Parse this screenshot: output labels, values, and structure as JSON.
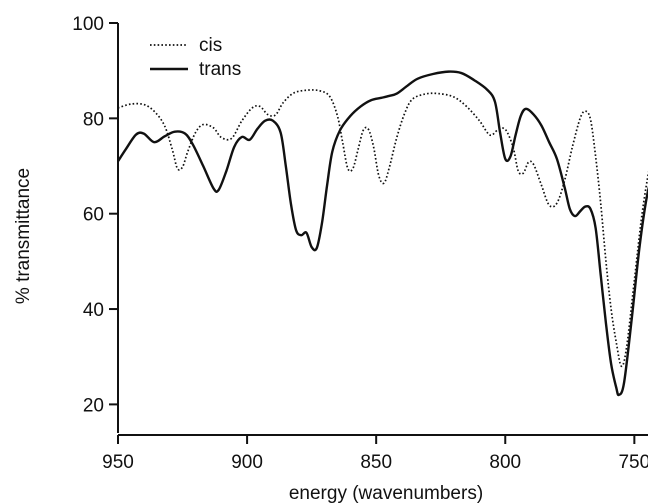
{
  "chart_data": {
    "type": "line",
    "title": "",
    "xlabel": "energy (wavenumbers)",
    "ylabel": "% transmittance",
    "xlim": [
      950,
      742
    ],
    "ylim": [
      14,
      100
    ],
    "x_reversed": true,
    "xticks": [
      950,
      900,
      850,
      800,
      750
    ],
    "yticks": [
      20,
      40,
      60,
      80,
      100
    ],
    "grid": false,
    "legend_position": "top-left",
    "series": [
      {
        "name": "cis",
        "style": "dotted",
        "color": "#111111",
        "points": [
          [
            950,
            82.2
          ],
          [
            945,
            83
          ],
          [
            940,
            82.9
          ],
          [
            936,
            81.5
          ],
          [
            932,
            78.5
          ],
          [
            929,
            73.5
          ],
          [
            927,
            69.5
          ],
          [
            925,
            69.8
          ],
          [
            923,
            73
          ],
          [
            920,
            77
          ],
          [
            917,
            78.7
          ],
          [
            913,
            78
          ],
          [
            910,
            76
          ],
          [
            906,
            75.8
          ],
          [
            902,
            79.5
          ],
          [
            898,
            82.2
          ],
          [
            895,
            82.5
          ],
          [
            892,
            80.8
          ],
          [
            889,
            80.7
          ],
          [
            886,
            83.3
          ],
          [
            882,
            85.3
          ],
          [
            877,
            85.9
          ],
          [
            872,
            85.8
          ],
          [
            868,
            84.6
          ],
          [
            865,
            80.5
          ],
          [
            863,
            75
          ],
          [
            861,
            69.5
          ],
          [
            859,
            69.5
          ],
          [
            857,
            73.5
          ],
          [
            855,
            77.5
          ],
          [
            853,
            77.7
          ],
          [
            851,
            74
          ],
          [
            849,
            68
          ],
          [
            847,
            66.4
          ],
          [
            845,
            69.5
          ],
          [
            842,
            76
          ],
          [
            839,
            81
          ],
          [
            836,
            84
          ],
          [
            831,
            85.1
          ],
          [
            826,
            85.2
          ],
          [
            820,
            84.5
          ],
          [
            815,
            82.5
          ],
          [
            810,
            79.5
          ],
          [
            806,
            76.5
          ],
          [
            803,
            77.5
          ],
          [
            800,
            77.7
          ],
          [
            797,
            74
          ],
          [
            795,
            69
          ],
          [
            793,
            68.5
          ],
          [
            791,
            70.8
          ],
          [
            789,
            70.3
          ],
          [
            786,
            66
          ],
          [
            783,
            61.8
          ],
          [
            780,
            62.2
          ],
          [
            777,
            67
          ],
          [
            774,
            74
          ],
          [
            771,
            80
          ],
          [
            769,
            81.5
          ],
          [
            767,
            79.8
          ],
          [
            765,
            72
          ],
          [
            763,
            62
          ],
          [
            761,
            50
          ],
          [
            759,
            40
          ],
          [
            757,
            33
          ],
          [
            755,
            28
          ],
          [
            753,
            32
          ],
          [
            750,
            46
          ],
          [
            747,
            60
          ],
          [
            744,
            70
          ],
          [
            742,
            73
          ]
        ]
      },
      {
        "name": "trans",
        "style": "solid",
        "color": "#111111",
        "points": [
          [
            950,
            71
          ],
          [
            947,
            73.5
          ],
          [
            943,
            76.6
          ],
          [
            940,
            76.8
          ],
          [
            936,
            75
          ],
          [
            932,
            76.2
          ],
          [
            928,
            77.2
          ],
          [
            924,
            76.8
          ],
          [
            921,
            74.5
          ],
          [
            917,
            70
          ],
          [
            913,
            65.3
          ],
          [
            911,
            65
          ],
          [
            908,
            69
          ],
          [
            905,
            74
          ],
          [
            902,
            76.1
          ],
          [
            899,
            75.5
          ],
          [
            896,
            77.8
          ],
          [
            893,
            79.5
          ],
          [
            890,
            79.5
          ],
          [
            887,
            77
          ],
          [
            885,
            70
          ],
          [
            883,
            62
          ],
          [
            881,
            56.5
          ],
          [
            879,
            55.5
          ],
          [
            877,
            56
          ],
          [
            875,
            53
          ],
          [
            873,
            52.8
          ],
          [
            871,
            58
          ],
          [
            869,
            66
          ],
          [
            867,
            73
          ],
          [
            864,
            77.5
          ],
          [
            860,
            80.5
          ],
          [
            856,
            82.5
          ],
          [
            852,
            83.8
          ],
          [
            848,
            84.3
          ],
          [
            845,
            84.7
          ],
          [
            842,
            85.2
          ],
          [
            838,
            86.8
          ],
          [
            834,
            88.3
          ],
          [
            828,
            89.3
          ],
          [
            822,
            89.8
          ],
          [
            817,
            89.5
          ],
          [
            812,
            88
          ],
          [
            807,
            86
          ],
          [
            804,
            83.5
          ],
          [
            802,
            77
          ],
          [
            800,
            71.5
          ],
          [
            798,
            72
          ],
          [
            796,
            76.5
          ],
          [
            794,
            80.5
          ],
          [
            792,
            82
          ],
          [
            789,
            80.8
          ],
          [
            786,
            78.5
          ],
          [
            783,
            75
          ],
          [
            780,
            71.5
          ],
          [
            777,
            65.5
          ],
          [
            775,
            61
          ],
          [
            773,
            59.5
          ],
          [
            771,
            60.5
          ],
          [
            769,
            61.5
          ],
          [
            767,
            61
          ],
          [
            765,
            57
          ],
          [
            763,
            47
          ],
          [
            761,
            37
          ],
          [
            759,
            28.5
          ],
          [
            757,
            23.5
          ],
          [
            756,
            22
          ],
          [
            754,
            24.5
          ],
          [
            751,
            38
          ],
          [
            748,
            53
          ],
          [
            745,
            64
          ],
          [
            742,
            70
          ]
        ]
      }
    ]
  }
}
